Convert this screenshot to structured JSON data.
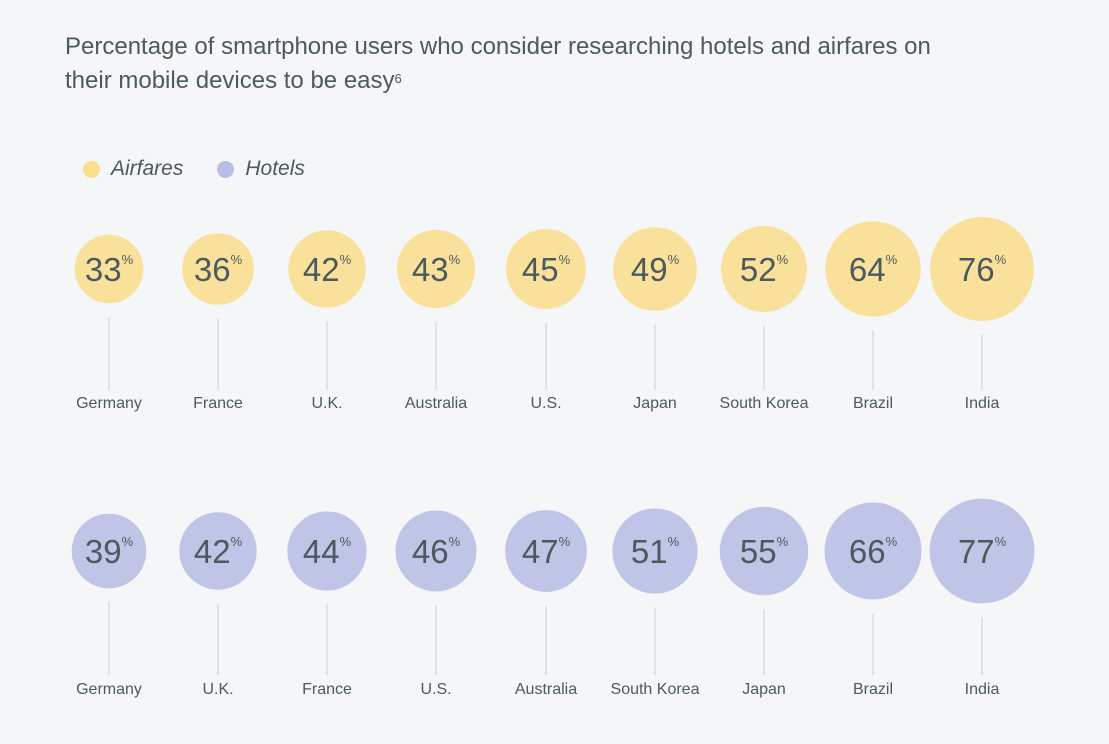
{
  "title": {
    "text": "Percentage of smartphone users who consider researching hotels and airfares on their mobile devices to be easy",
    "footnote": "6"
  },
  "chart_data": {
    "type": "bubble",
    "title": "Percentage of smartphone users who consider researching hotels and airfares on their mobile devices to be easy",
    "unit": "%",
    "legend": {
      "placement": "top-left",
      "entries": [
        "Airfares",
        "Hotels"
      ]
    },
    "series": [
      {
        "name": "Airfares",
        "color": "#fbde8d",
        "categories": [
          "Germany",
          "France",
          "U.K.",
          "Australia",
          "U.S.",
          "Japan",
          "South Korea",
          "Brazil",
          "India"
        ],
        "values": [
          33,
          36,
          42,
          43,
          45,
          49,
          52,
          64,
          76
        ]
      },
      {
        "name": "Hotels",
        "color": "#b8bde3",
        "categories": [
          "Germany",
          "U.K.",
          "France",
          "U.S.",
          "Australia",
          "South Korea",
          "Japan",
          "Brazil",
          "India"
        ],
        "values": [
          39,
          42,
          44,
          46,
          47,
          51,
          55,
          66,
          77
        ]
      }
    ]
  },
  "colors": {
    "background": "#f4f6f8",
    "text": "#4b5a5f",
    "connector": "#c9cdd1",
    "airfares": "#fbde8d",
    "hotels": "#b8bde3"
  }
}
